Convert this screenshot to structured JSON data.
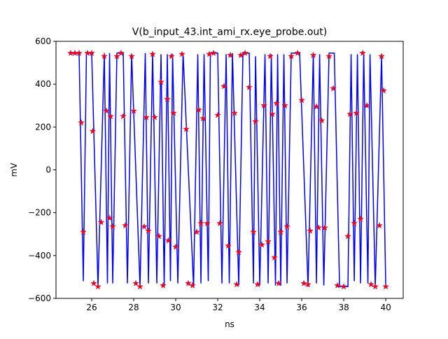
{
  "chart_data": {
    "type": "line",
    "title": "V(b_input_43.int_ami_rx.eye_probe.out)",
    "xlabel": "ns",
    "ylabel": "mV",
    "xlim": [
      24.3,
      40.83
    ],
    "ylim": [
      -600,
      600
    ],
    "xticks": [
      26,
      28,
      30,
      32,
      34,
      36,
      38,
      40
    ],
    "yticks": [
      {
        "value": -600,
        "label": "−600"
      },
      {
        "value": -400,
        "label": "−400"
      },
      {
        "value": -200,
        "label": "−200"
      },
      0,
      200,
      400,
      600
    ],
    "series": [
      {
        "color": "#0000ff",
        "marker": "none",
        "x": [
          25.0,
          25.4,
          25.6,
          25.75,
          26.0,
          26.3,
          26.6,
          26.75,
          26.85,
          27.0,
          27.2,
          27.5,
          27.7,
          27.9,
          28.3,
          28.55,
          28.7,
          28.9,
          29.1,
          29.3,
          29.45,
          29.6,
          29.75,
          29.85,
          30.1,
          30.35,
          30.85,
          31.05,
          31.2,
          31.35,
          31.55,
          31.65,
          32.0,
          32.2,
          32.4,
          32.55,
          32.7,
          33.0,
          33.2,
          33.5,
          33.7,
          33.8,
          34.0,
          34.25,
          34.4,
          34.55,
          34.75,
          34.85,
          35.0,
          35.15,
          35.3,
          35.5,
          35.9,
          36.3,
          36.55,
          36.7,
          36.85,
          37.05,
          37.3,
          37.55,
          37.8,
          38.2,
          38.35,
          38.5,
          38.65,
          38.8,
          38.95,
          39.15,
          39.25,
          39.5,
          39.8,
          40.0
        ],
        "values": [
          545,
          545,
          -520,
          545,
          545,
          -545,
          545,
          -530,
          545,
          -530,
          545,
          545,
          -530,
          540,
          -545,
          545,
          -530,
          545,
          -530,
          540,
          -545,
          540,
          -520,
          540,
          -530,
          545,
          -545,
          540,
          -530,
          540,
          -520,
          545,
          545,
          -530,
          540,
          -530,
          545,
          -540,
          545,
          545,
          -530,
          530,
          -540,
          540,
          -530,
          540,
          -540,
          540,
          -540,
          540,
          -530,
          545,
          545,
          -545,
          545,
          -530,
          540,
          -540,
          545,
          545,
          -545,
          -545,
          540,
          -520,
          540,
          -530,
          545,
          -530,
          540,
          -545,
          530,
          -545
        ]
      },
      {
        "color": "#ff0000",
        "marker": "star",
        "x": [
          25.0,
          25.2,
          25.4,
          25.5,
          25.6,
          25.8,
          26.0,
          26.05,
          26.1,
          26.3,
          26.45,
          26.6,
          26.7,
          26.85,
          26.9,
          27.0,
          27.2,
          27.4,
          27.5,
          27.6,
          27.9,
          28.0,
          28.1,
          28.3,
          28.5,
          28.6,
          28.7,
          28.9,
          29.0,
          29.2,
          29.3,
          29.4,
          29.6,
          29.65,
          29.8,
          29.9,
          30.0,
          30.3,
          30.5,
          30.6,
          30.8,
          31.0,
          31.1,
          31.2,
          31.3,
          31.5,
          31.6,
          31.8,
          32.0,
          32.1,
          32.3,
          32.5,
          32.6,
          32.8,
          32.9,
          33.0,
          33.1,
          33.3,
          33.5,
          33.7,
          33.8,
          33.9,
          34.1,
          34.2,
          34.4,
          34.5,
          34.6,
          34.7,
          34.8,
          34.9,
          35.0,
          35.2,
          35.3,
          35.5,
          35.8,
          36.0,
          36.1,
          36.3,
          36.4,
          36.55,
          36.7,
          36.8,
          36.95,
          37.1,
          37.3,
          37.5,
          37.7,
          38.0,
          38.2,
          38.3,
          38.5,
          38.6,
          38.8,
          38.9,
          39.1,
          39.3,
          39.5,
          39.7,
          39.8,
          39.9,
          40.0
        ],
        "values": [
          545,
          545,
          545,
          220,
          -290,
          545,
          545,
          180,
          -530,
          -545,
          -245,
          530,
          275,
          -225,
          250,
          -265,
          530,
          545,
          250,
          -260,
          530,
          275,
          -530,
          -545,
          -265,
          245,
          -285,
          540,
          245,
          -310,
          410,
          -540,
          330,
          -330,
          530,
          265,
          -360,
          540,
          190,
          -530,
          -540,
          -290,
          280,
          -250,
          240,
          -250,
          540,
          545,
          255,
          -250,
          390,
          -355,
          535,
          265,
          -535,
          -385,
          535,
          545,
          385,
          -290,
          225,
          -535,
          -350,
          300,
          -335,
          530,
          260,
          -410,
          310,
          -530,
          -290,
          300,
          -265,
          530,
          545,
          325,
          -530,
          -535,
          -285,
          535,
          295,
          -270,
          230,
          -270,
          530,
          380,
          -540,
          -545,
          -310,
          260,
          -250,
          265,
          -230,
          545,
          300,
          -535,
          -545,
          -260,
          530,
          370,
          -545
        ]
      }
    ]
  }
}
